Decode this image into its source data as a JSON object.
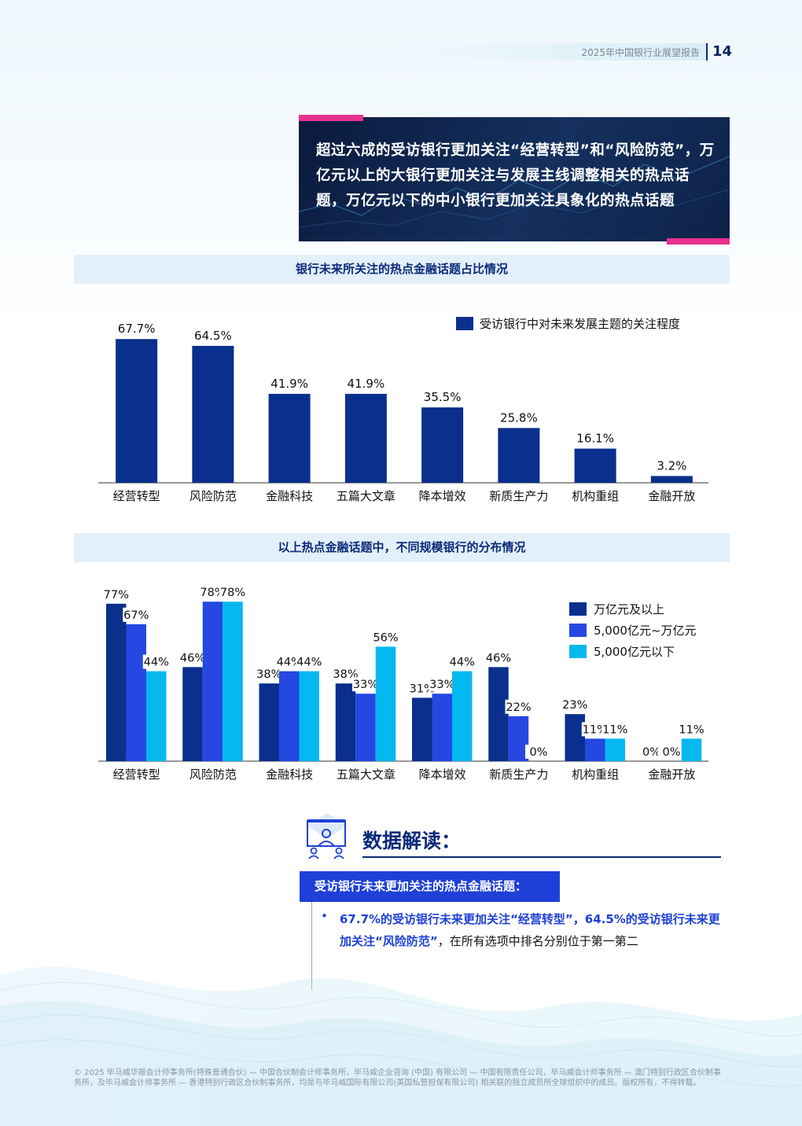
{
  "header": {
    "report_title": "2025年中国银行业展望报告",
    "page_number": "14"
  },
  "banner": {
    "text": "超过六成的受访银行更加关注“经营转型”和“风险防范”，万亿元以上的大银行更加关注与发展主线调整相关的热点话题，万亿元以下的中小银行更加关注具象化的热点话题"
  },
  "colors": {
    "navy": "#0a2f8c",
    "blue": "#2548e2",
    "cyan": "#05b8f0",
    "accent_pink": "#e8318f"
  },
  "chart_data": [
    {
      "type": "bar",
      "title": "银行未来所关注的热点金融话题占比情况",
      "categories": [
        "经营转型",
        "风险防范",
        "金融科技",
        "五篇大文章",
        "降本增效",
        "新质生产力",
        "机构重组",
        "金融开放"
      ],
      "series": [
        {
          "name": "受访银行中对未来发展主题的关注程度",
          "values": [
            67.7,
            64.5,
            41.9,
            41.9,
            35.5,
            25.8,
            16.1,
            3.2
          ]
        }
      ],
      "value_labels": [
        "67.7%",
        "64.5%",
        "41.9%",
        "41.9%",
        "35.5%",
        "25.8%",
        "16.1%",
        "3.2%"
      ],
      "ylim": [
        0,
        70
      ],
      "legend": "top-right"
    },
    {
      "type": "bar",
      "title": "以上热点金融话题中，不同规模银行的分布情况",
      "categories": [
        "经营转型",
        "风险防范",
        "金融科技",
        "五篇大文章",
        "降本增效",
        "新质生产力",
        "机构重组",
        "金融开放"
      ],
      "series": [
        {
          "name": "万亿元及以上",
          "values": [
            77,
            46,
            38,
            38,
            31,
            46,
            23,
            0
          ]
        },
        {
          "name": "5,000亿元~万亿元",
          "values": [
            67,
            78,
            44,
            33,
            33,
            22,
            11,
            0
          ]
        },
        {
          "name": "5,000亿元以下",
          "values": [
            44,
            78,
            44,
            56,
            44,
            0,
            11,
            11
          ]
        }
      ],
      "ylim": [
        0,
        78
      ],
      "legend": "right"
    }
  ],
  "interpretation": {
    "title": "数据解读：",
    "tab_label": "受访银行未来更加关注的热点金融话题：",
    "bullet_symbol": "•",
    "bullet_highlight": "67.7%的受访银行未来更加关注“经营转型”，64.5%的受访银行未来更加关注“风险防范”",
    "bullet_rest": "，在所有选项中排名分别位于第一第二"
  },
  "footer": "© 2025 毕马威华振会计师事务所(特殊普通合伙) — 中国合伙制会计师事务所，毕马威企业咨询 (中国) 有限公司 — 中国有限责任公司，毕马威会计师事务所 — 澳门特别行政区合伙制事务所，及毕马威会计师事务所 — 香港特别行政区合伙制事务所，均是与毕马威国际有限公司(英国私营担保有限公司) 相关联的独立成员所全球组织中的成员。版权所有，不得转载。"
}
